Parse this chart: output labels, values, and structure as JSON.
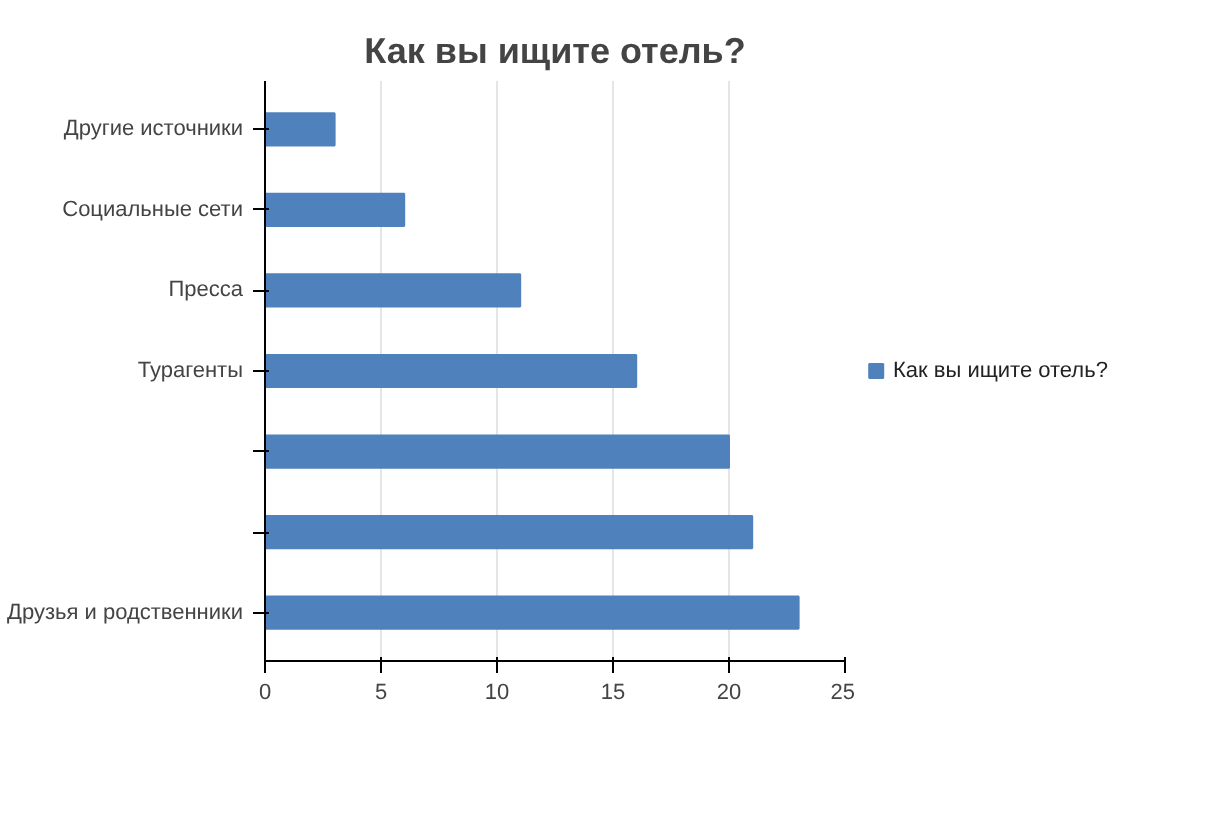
{
  "chart_data": {
    "type": "bar",
    "orientation": "horizontal",
    "title": "Как вы ищите отель?",
    "categories": [
      "Другие источники",
      "Социальные сети",
      "Пресса",
      "Турагенты",
      null,
      null,
      "Друзья и родственники"
    ],
    "series": [
      {
        "name": "Как вы ищите отель?",
        "color": "#4f81bd",
        "values": [
          3,
          6,
          11,
          16,
          20,
          21,
          23
        ]
      }
    ],
    "xlim": [
      0,
      25
    ],
    "xticks": [
      0,
      5,
      10,
      15,
      20,
      25
    ],
    "grid": "x",
    "legend": "right"
  }
}
